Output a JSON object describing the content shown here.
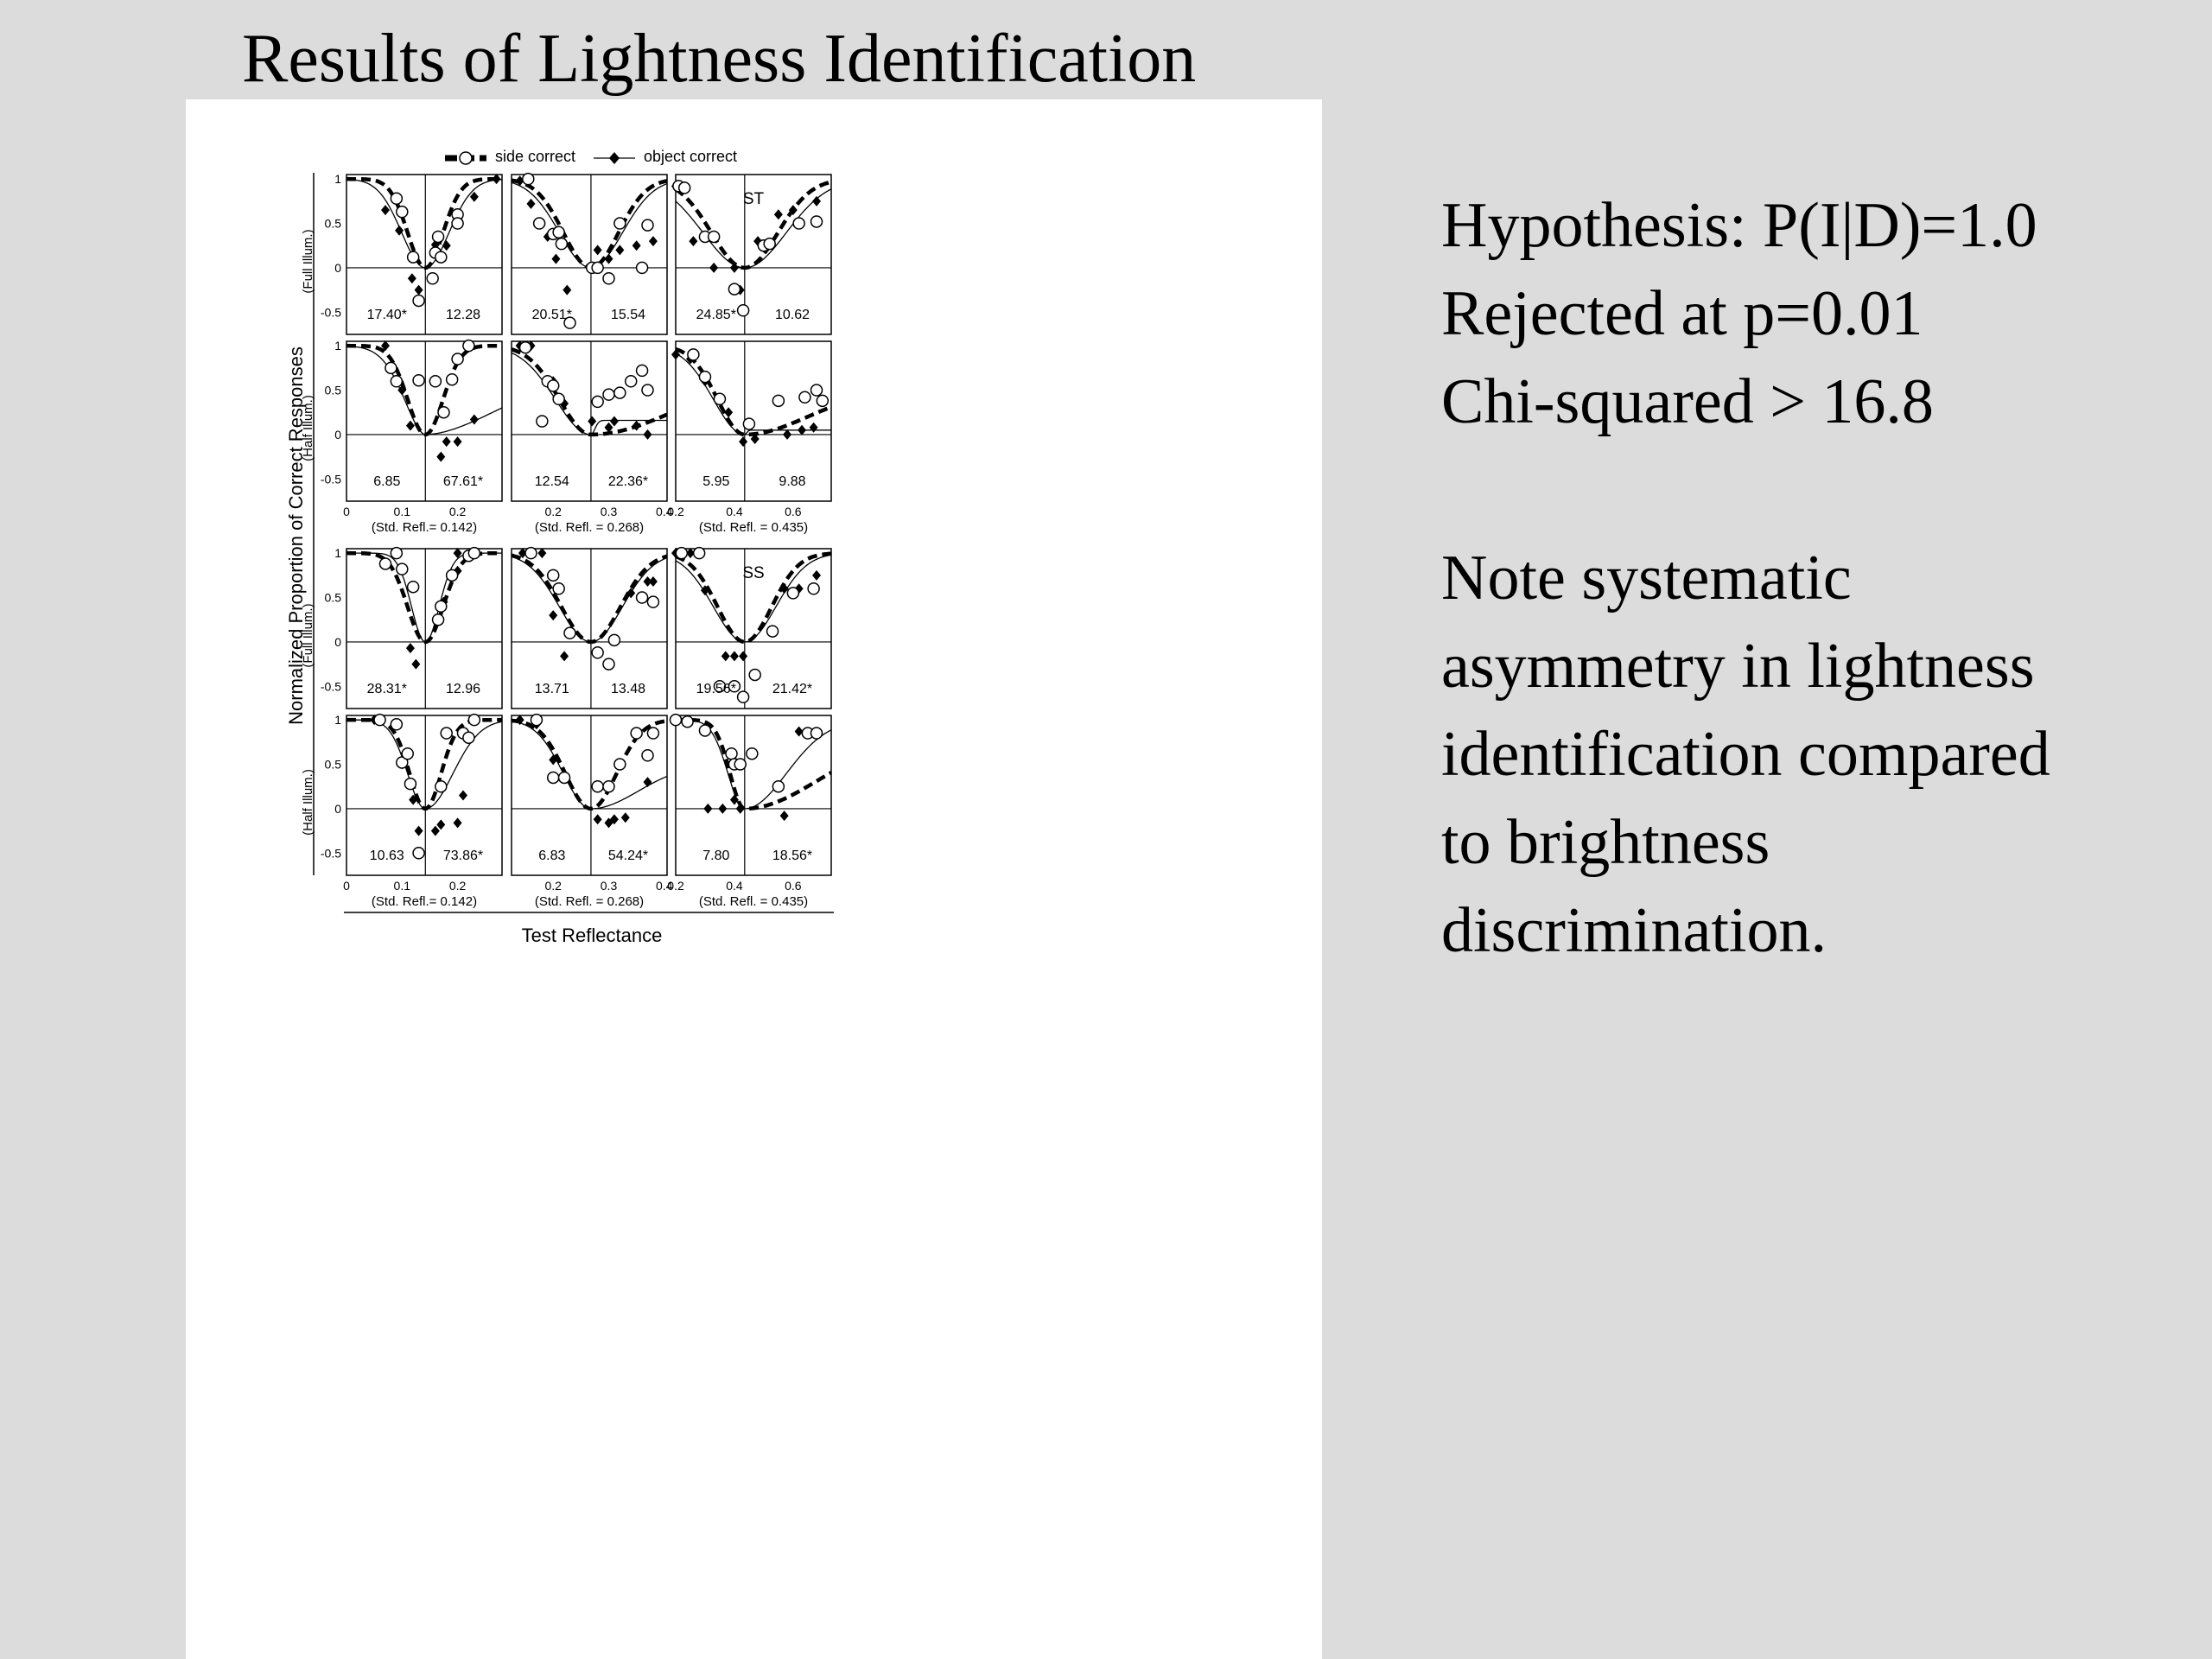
{
  "slide": {
    "title": "Results of Lightness Identification",
    "hypothesis_lines": [
      "Hypothesis: P(I|D)=1.0",
      "Rejected at p=0.01",
      "Chi-squared > 16.8"
    ],
    "note_lines": [
      "Note systematic",
      "asymmetry in lightness",
      "identification compared",
      "to brightness",
      "discrimination."
    ]
  },
  "chart_data": {
    "type": "line",
    "ylabel": "Normalized Proportion of Correct Responses",
    "xlabel": "Test Reflectance",
    "legend": {
      "placement": "top",
      "entries": [
        {
          "name": "side correct",
          "style": "thick-dashed-open-circle"
        },
        {
          "name": "object correct",
          "style": "thin-solid-filled-diamond"
        }
      ]
    },
    "ylim": [
      -0.75,
      1.05
    ],
    "yticks": [
      -0.5,
      0,
      0.5,
      1
    ],
    "ytick_labels": [
      "-0.5",
      "0",
      "0.5",
      "1"
    ],
    "row_labels": [
      "(Full Illum.)",
      "(Half Illum.)",
      "(Full Illum.)",
      "(Half Illum.)"
    ],
    "observers": [
      "ST",
      "SS"
    ],
    "columns": [
      {
        "std_refl": 0.142,
        "std_label": "(Std. Refl.= 0.142)",
        "xlim": [
          0,
          0.28
        ],
        "xticks": [
          0,
          0.1,
          0.2
        ],
        "xtick_labels": [
          "0",
          "0.1",
          "0.2"
        ]
      },
      {
        "std_refl": 0.268,
        "std_label": "(Std. Refl. = 0.268)",
        "xlim": [
          0.125,
          0.405
        ],
        "xticks": [
          0.2,
          0.3,
          0.4
        ],
        "xtick_labels": [
          "0.2",
          "0.3",
          "0.4"
        ]
      },
      {
        "std_refl": 0.435,
        "std_label": "(Std. Refl. = 0.435)",
        "xlim": [
          0.2,
          0.73
        ],
        "xticks": [
          0.2,
          0.4,
          0.6
        ],
        "xtick_labels": [
          "0.2",
          "0.4",
          "0.6"
        ]
      }
    ],
    "panels": [
      {
        "row": 0,
        "col": 0,
        "chi_left": "17.40*",
        "chi_right": "12.28",
        "side_points": [
          [
            0.09,
            0.78
          ],
          [
            0.1,
            0.63
          ],
          [
            0.12,
            0.12
          ],
          [
            0.13,
            -0.37
          ],
          [
            0.155,
            -0.12
          ],
          [
            0.16,
            0.17
          ],
          [
            0.165,
            0.35
          ],
          [
            0.17,
            0.12
          ],
          [
            0.2,
            0.6
          ],
          [
            0.2,
            0.5
          ]
        ],
        "object_points": [
          [
            0.07,
            0.65
          ],
          [
            0.095,
            0.42
          ],
          [
            0.118,
            -0.12
          ],
          [
            0.13,
            -0.25
          ],
          [
            0.16,
            0.26
          ],
          [
            0.18,
            0.25
          ],
          [
            0.23,
            0.8
          ],
          [
            0.27,
            1.0
          ]
        ],
        "side_curve": {
          "w": 0.045,
          "p": 2
        },
        "object_curve": {
          "w": 0.06,
          "p": 2
        }
      },
      {
        "row": 0,
        "col": 1,
        "chi_left": "20.51*",
        "chi_right": "15.54",
        "side_points": [
          [
            0.155,
            1.0
          ],
          [
            0.175,
            0.5
          ],
          [
            0.2,
            0.38
          ],
          [
            0.21,
            0.4
          ],
          [
            0.215,
            0.27
          ],
          [
            0.23,
            -0.62
          ],
          [
            0.27,
            0.0
          ],
          [
            0.28,
            0.0
          ],
          [
            0.3,
            -0.12
          ],
          [
            0.32,
            0.5
          ],
          [
            0.36,
            0.0
          ],
          [
            0.37,
            0.48
          ]
        ],
        "object_points": [
          [
            0.14,
            0.98
          ],
          [
            0.16,
            0.72
          ],
          [
            0.19,
            0.35
          ],
          [
            0.205,
            0.1
          ],
          [
            0.225,
            -0.25
          ],
          [
            0.28,
            0.2
          ],
          [
            0.3,
            0.1
          ],
          [
            0.32,
            0.2
          ],
          [
            0.35,
            0.25
          ],
          [
            0.38,
            0.3
          ]
        ],
        "side_curve": {
          "w": 0.07,
          "p": 2
        },
        "object_curve": {
          "w": 0.08,
          "p": 2
        }
      },
      {
        "row": 0,
        "col": 2,
        "chi_left": "24.85*",
        "chi_right": "10.62",
        "label": "ST",
        "side_points": [
          [
            0.21,
            0.92
          ],
          [
            0.23,
            0.9
          ],
          [
            0.3,
            0.35
          ],
          [
            0.33,
            0.35
          ],
          [
            0.4,
            -0.24
          ],
          [
            0.43,
            -0.48
          ],
          [
            0.5,
            0.25
          ],
          [
            0.52,
            0.27
          ],
          [
            0.62,
            0.5
          ],
          [
            0.68,
            0.52
          ]
        ],
        "object_points": [
          [
            0.2,
            0.92
          ],
          [
            0.26,
            0.3
          ],
          [
            0.33,
            0.0
          ],
          [
            0.4,
            0.0
          ],
          [
            0.42,
            -0.25
          ],
          [
            0.48,
            0.3
          ],
          [
            0.55,
            0.6
          ],
          [
            0.6,
            0.65
          ],
          [
            0.68,
            0.75
          ]
        ],
        "side_curve": {
          "w": 0.16,
          "p": 2
        },
        "object_curve": {
          "w": 0.2,
          "p": 2
        }
      },
      {
        "row": 1,
        "col": 0,
        "chi_left": "6.85",
        "chi_right": "67.61*",
        "side_points": [
          [
            0.09,
            0.6
          ],
          [
            0.13,
            0.61
          ],
          [
            0.16,
            0.6
          ],
          [
            0.175,
            0.25
          ],
          [
            0.2,
            0.85
          ],
          [
            0.22,
            1.0
          ],
          [
            0.19,
            0.62
          ],
          [
            0.08,
            0.75
          ]
        ],
        "object_points": [
          [
            0.07,
            1.0
          ],
          [
            0.1,
            0.5
          ],
          [
            0.115,
            0.1
          ],
          [
            0.17,
            -0.25
          ],
          [
            0.18,
            -0.08
          ],
          [
            0.2,
            -0.08
          ],
          [
            0.23,
            0.17
          ]
        ],
        "side_curve": {
          "w": 0.045,
          "p": 2
        },
        "object_curve": {
          "w": 0.055,
          "p": 1.8,
          "right_amp": 0.75,
          "right_w": 0.2
        }
      },
      {
        "row": 1,
        "col": 1,
        "chi_left": "12.54",
        "chi_right": "22.36*",
        "side_points": [
          [
            0.19,
            0.6
          ],
          [
            0.2,
            0.55
          ],
          [
            0.21,
            0.4
          ],
          [
            0.18,
            0.15
          ],
          [
            0.28,
            0.37
          ],
          [
            0.3,
            0.45
          ],
          [
            0.32,
            0.47
          ],
          [
            0.34,
            0.6
          ],
          [
            0.36,
            0.72
          ],
          [
            0.37,
            0.5
          ],
          [
            0.15,
            0.98
          ]
        ],
        "object_points": [
          [
            0.14,
            1.0
          ],
          [
            0.16,
            1.0
          ],
          [
            0.2,
            0.6
          ],
          [
            0.22,
            0.35
          ],
          [
            0.27,
            0.15
          ],
          [
            0.3,
            0.08
          ],
          [
            0.35,
            0.1
          ],
          [
            0.37,
            0.0
          ],
          [
            0.31,
            0.15
          ]
        ],
        "side_curve": {
          "w": 0.08,
          "p": 2,
          "right_amp": 0.65,
          "right_w": 0.21
        },
        "object_curve": {
          "w": 0.09,
          "p": 2,
          "right_amp": 0.16,
          "right_w": 0.01
        }
      },
      {
        "row": 1,
        "col": 2,
        "chi_left": "5.95",
        "chi_right": "9.88",
        "side_points": [
          [
            0.26,
            0.9
          ],
          [
            0.3,
            0.65
          ],
          [
            0.35,
            0.4
          ],
          [
            0.45,
            0.12
          ],
          [
            0.55,
            0.38
          ],
          [
            0.64,
            0.42
          ],
          [
            0.68,
            0.5
          ],
          [
            0.7,
            0.38
          ]
        ],
        "object_points": [
          [
            0.2,
            0.9
          ],
          [
            0.25,
            0.85
          ],
          [
            0.3,
            0.6
          ],
          [
            0.38,
            0.25
          ],
          [
            0.43,
            -0.08
          ],
          [
            0.47,
            -0.05
          ],
          [
            0.58,
            0.0
          ],
          [
            0.63,
            0.05
          ],
          [
            0.67,
            0.08
          ]
        ],
        "side_curve": {
          "w": 0.13,
          "p": 2,
          "right_amp": 0.5,
          "right_w": 0.3
        },
        "object_curve": {
          "w": 0.15,
          "p": 2,
          "right_amp": 0.05,
          "right_w": 0.01
        }
      },
      {
        "row": 2,
        "col": 0,
        "chi_left": "28.31*",
        "chi_right": "12.96",
        "side_points": [
          [
            0.07,
            0.88
          ],
          [
            0.09,
            1.0
          ],
          [
            0.1,
            0.82
          ],
          [
            0.12,
            0.62
          ],
          [
            0.165,
            0.25
          ],
          [
            0.17,
            0.4
          ],
          [
            0.19,
            0.75
          ],
          [
            0.22,
            0.97
          ],
          [
            0.23,
            1.0
          ]
        ],
        "object_points": [
          [
            0.07,
            0.88
          ],
          [
            0.115,
            -0.07
          ],
          [
            0.125,
            -0.25
          ],
          [
            0.175,
            0.45
          ],
          [
            0.2,
            0.8
          ],
          [
            0.2,
            1.0
          ]
        ],
        "side_curve": {
          "w": 0.045,
          "p": 2
        },
        "object_curve": {
          "w": 0.035,
          "p": 2
        }
      },
      {
        "row": 2,
        "col": 1,
        "chi_left": "13.71",
        "chi_right": "13.48",
        "side_points": [
          [
            0.16,
            1.0
          ],
          [
            0.2,
            0.75
          ],
          [
            0.21,
            0.6
          ],
          [
            0.23,
            0.1
          ],
          [
            0.28,
            -0.12
          ],
          [
            0.3,
            -0.25
          ],
          [
            0.31,
            0.02
          ],
          [
            0.36,
            0.5
          ],
          [
            0.38,
            0.45
          ]
        ],
        "object_points": [
          [
            0.145,
            1.0
          ],
          [
            0.18,
            1.0
          ],
          [
            0.2,
            0.3
          ],
          [
            0.22,
            -0.16
          ],
          [
            0.34,
            0.55
          ],
          [
            0.37,
            0.68
          ],
          [
            0.38,
            0.68
          ]
        ],
        "side_curve": {
          "w": 0.075,
          "p": 2
        },
        "object_curve": {
          "w": 0.08,
          "p": 2
        }
      },
      {
        "row": 2,
        "col": 2,
        "chi_left": "19.56*",
        "chi_right": "21.42*",
        "label": "SS",
        "side_points": [
          [
            0.22,
            1.0
          ],
          [
            0.28,
            1.0
          ],
          [
            0.35,
            -0.5
          ],
          [
            0.4,
            -0.5
          ],
          [
            0.43,
            -0.62
          ],
          [
            0.47,
            -0.37
          ],
          [
            0.53,
            0.12
          ],
          [
            0.6,
            0.55
          ],
          [
            0.67,
            0.6
          ]
        ],
        "object_points": [
          [
            0.2,
            1.0
          ],
          [
            0.25,
            1.0
          ],
          [
            0.3,
            0.58
          ],
          [
            0.37,
            -0.16
          ],
          [
            0.4,
            -0.16
          ],
          [
            0.43,
            -0.16
          ],
          [
            0.57,
            0.6
          ],
          [
            0.62,
            0.6
          ],
          [
            0.68,
            0.75
          ]
        ],
        "side_curve": {
          "w": 0.13,
          "p": 2
        },
        "object_curve": {
          "w": 0.15,
          "p": 2
        }
      },
      {
        "row": 3,
        "col": 0,
        "chi_left": "10.63",
        "chi_right": "73.86*",
        "side_points": [
          [
            0.06,
            1.0
          ],
          [
            0.09,
            0.95
          ],
          [
            0.1,
            0.52
          ],
          [
            0.11,
            0.62
          ],
          [
            0.115,
            0.28
          ],
          [
            0.13,
            -0.5
          ],
          [
            0.17,
            0.25
          ],
          [
            0.18,
            0.85
          ],
          [
            0.21,
            0.85
          ],
          [
            0.22,
            0.8
          ],
          [
            0.23,
            1.0
          ]
        ],
        "object_points": [
          [
            0.05,
            1.0
          ],
          [
            0.1,
            0.5
          ],
          [
            0.12,
            0.1
          ],
          [
            0.13,
            -0.25
          ],
          [
            0.16,
            -0.25
          ],
          [
            0.17,
            -0.18
          ],
          [
            0.2,
            -0.16
          ],
          [
            0.21,
            0.15
          ]
        ],
        "side_curve": {
          "w": 0.04,
          "p": 2
        },
        "object_curve": {
          "w": 0.045,
          "p": 2,
          "right_w": 0.07
        }
      },
      {
        "row": 3,
        "col": 1,
        "chi_left": "6.83",
        "chi_right": "54.24*",
        "side_points": [
          [
            0.17,
            1.0
          ],
          [
            0.2,
            0.35
          ],
          [
            0.22,
            0.35
          ],
          [
            0.28,
            0.25
          ],
          [
            0.3,
            0.25
          ],
          [
            0.32,
            0.5
          ],
          [
            0.35,
            0.85
          ],
          [
            0.37,
            0.6
          ],
          [
            0.38,
            0.85
          ]
        ],
        "object_points": [
          [
            0.14,
            1.0
          ],
          [
            0.17,
            0.95
          ],
          [
            0.2,
            0.55
          ],
          [
            0.22,
            0.35
          ],
          [
            0.28,
            -0.12
          ],
          [
            0.3,
            -0.16
          ],
          [
            0.31,
            -0.12
          ],
          [
            0.33,
            -0.1
          ],
          [
            0.37,
            0.3
          ]
        ],
        "side_curve": {
          "w": 0.065,
          "p": 2
        },
        "object_curve": {
          "w": 0.07,
          "p": 2,
          "right_amp": 0.5,
          "right_w": 0.12
        }
      },
      {
        "row": 3,
        "col": 2,
        "chi_left": "7.80",
        "chi_right": "18.56*",
        "side_points": [
          [
            0.2,
            1.0
          ],
          [
            0.24,
            0.98
          ],
          [
            0.3,
            0.88
          ],
          [
            0.39,
            0.62
          ],
          [
            0.4,
            0.5
          ],
          [
            0.42,
            0.5
          ],
          [
            0.46,
            0.62
          ],
          [
            0.55,
            0.25
          ],
          [
            0.65,
            0.85
          ],
          [
            0.68,
            0.85
          ]
        ],
        "object_points": [
          [
            0.2,
            1.0
          ],
          [
            0.24,
            1.0
          ],
          [
            0.31,
            0.0
          ],
          [
            0.36,
            0.0
          ],
          [
            0.4,
            0.1
          ],
          [
            0.42,
            0.0
          ],
          [
            0.57,
            -0.08
          ],
          [
            0.62,
            0.87
          ]
        ],
        "side_curve": {
          "w": 0.07,
          "p": 2,
          "right_amp": 0.8,
          "right_w": 0.35
        },
        "object_curve": {
          "w": 0.08,
          "p": 2,
          "right_w": 0.2
        }
      }
    ]
  }
}
